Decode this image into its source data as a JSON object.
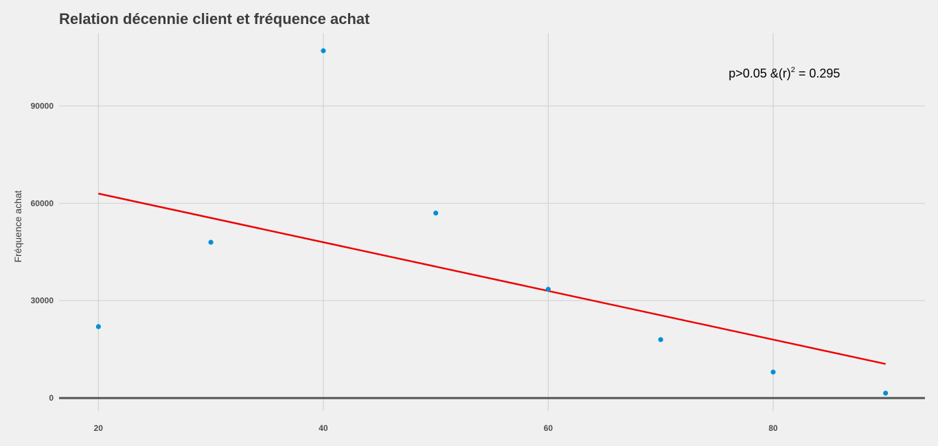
{
  "chart_data": {
    "type": "scatter",
    "title": "Relation décennie client et fréquence achat",
    "xlabel": "",
    "ylabel": "Fréquence achat",
    "xlim": [
      16.5,
      93.5
    ],
    "ylim": [
      -4000,
      112500
    ],
    "x_ticks": [
      20,
      40,
      60,
      80
    ],
    "y_ticks": [
      0,
      30000,
      60000,
      90000
    ],
    "grid": true,
    "series": [
      {
        "x": [
          20,
          30,
          40,
          50,
          60,
          70,
          80,
          90
        ],
        "y": [
          22000,
          48000,
          107000,
          57000,
          33500,
          18000,
          8000,
          1500
        ],
        "color": "#008fd5"
      }
    ],
    "regression_line": {
      "x": [
        20,
        90
      ],
      "y": [
        63000,
        10500
      ],
      "color": "#ee0000"
    },
    "annotation": {
      "prefix": "p>0.05 &(r)",
      "sup": "2",
      "suffix": " = 0.295",
      "x": 81,
      "y": 100000
    }
  }
}
